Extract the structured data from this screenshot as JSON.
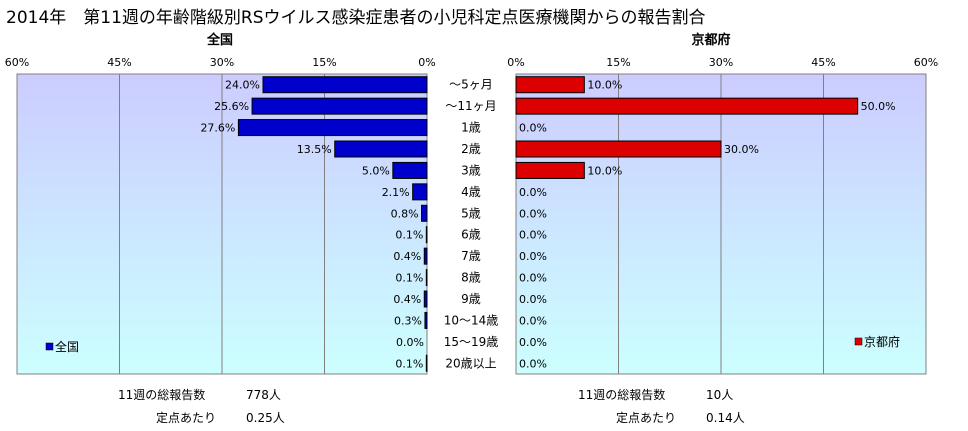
{
  "title": "2014年　第11週の年齢階級別RSウイルス感染症患者の小児科定点医療機関からの報告割合",
  "categories": [
    "～5ヶ月",
    "～11ヶ月",
    "1歳",
    "2歳",
    "3歳",
    "4歳",
    "5歳",
    "6歳",
    "7歳",
    "8歳",
    "9歳",
    "10～14歳",
    "15～19歳",
    "20歳以上"
  ],
  "chart_data": [
    {
      "type": "bar",
      "orientation": "horizontal",
      "title": "全国",
      "x_direction": "reversed",
      "xlim": [
        0,
        60
      ],
      "x_ticks": [
        "60%",
        "45%",
        "30%",
        "15%",
        "0%"
      ],
      "series": [
        {
          "name": "全国",
          "color": "#0000cc",
          "values": [
            24.0,
            25.6,
            27.6,
            13.5,
            5.0,
            2.1,
            0.8,
            0.1,
            0.4,
            0.1,
            0.4,
            0.3,
            0.0,
            0.1
          ],
          "labels": [
            "24.0%",
            "25.6%",
            "27.6%",
            "13.5%",
            "5.0%",
            "2.1%",
            "0.8%",
            "0.1%",
            "0.4%",
            "0.1%",
            "0.4%",
            "0.3%",
            "0.0%",
            "0.1%"
          ]
        }
      ],
      "legend_position": "bottom-left"
    },
    {
      "type": "bar",
      "orientation": "horizontal",
      "title": "京都府",
      "xlim": [
        0,
        60
      ],
      "x_ticks": [
        "0%",
        "15%",
        "30%",
        "45%",
        "60%"
      ],
      "series": [
        {
          "name": "京都府",
          "color": "#dd0000",
          "values": [
            10.0,
            50.0,
            0.0,
            30.0,
            10.0,
            0.0,
            0.0,
            0.0,
            0.0,
            0.0,
            0.0,
            0.0,
            0.0,
            0.0
          ],
          "labels": [
            "10.0%",
            "50.0%",
            "0.0%",
            "30.0%",
            "10.0%",
            "0.0%",
            "0.0%",
            "0.0%",
            "0.0%",
            "0.0%",
            "0.0%",
            "0.0%",
            "0.0%",
            "0.0%"
          ]
        }
      ],
      "legend_position": "bottom-right"
    }
  ],
  "footer": {
    "national": {
      "total_label": "11週の総報告数",
      "total_value": "778人",
      "per_label": "定点あたり",
      "per_value": "0.25人"
    },
    "kyoto": {
      "total_label": "11週の総報告数",
      "total_value": "10人",
      "per_label": "定点あたり",
      "per_value": "0.14人"
    }
  },
  "colors": {
    "plot_top": "#ccccff",
    "plot_bottom": "#ccffff",
    "gridline": "#808080",
    "national_bar": "#0000cc",
    "kyoto_bar": "#dd0000"
  }
}
